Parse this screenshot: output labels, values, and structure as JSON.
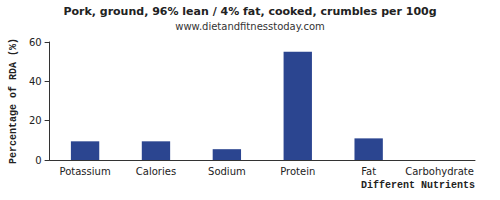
{
  "chart_data": {
    "type": "bar",
    "title": "Pork, ground, 96% lean / 4% fat, cooked, crumbles per 100g",
    "subtitle": "www.dietandfitnesstoday.com",
    "xlabel": "Different Nutrients",
    "ylabel": "Percentage of RDA (%)",
    "categories": [
      "Potassium",
      "Calories",
      "Sodium",
      "Protein",
      "Fat",
      "Carbohydrate"
    ],
    "values": [
      9.5,
      9.5,
      5.5,
      55,
      11,
      0
    ],
    "color": "#2b4590",
    "ylim": [
      0,
      60
    ],
    "yticks": [
      0,
      20,
      40,
      60
    ],
    "grid": false
  }
}
